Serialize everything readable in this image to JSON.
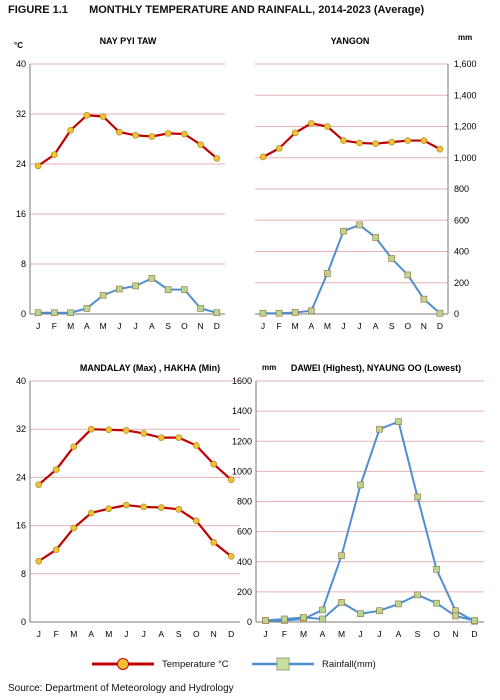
{
  "figure": {
    "number": "FIGURE 1.1",
    "title": "MONTHLY TEMPERATURE AND RAINFALL, 2014-2023 (Average)"
  },
  "colors": {
    "temperature_line": "#c00000",
    "temperature_marker": "#f2c232",
    "rainfall_line": "#4f8fd0",
    "rainfall_marker": "#b9d68f",
    "grid": "#e6b3b3"
  },
  "legend": {
    "temperature": "Temperature  °C",
    "rainfall": "Rainfall(mm)"
  },
  "source": "Source: Department  of Meteorology and Hydrology",
  "chart_data": [
    {
      "title": "NAY PYI TAW",
      "type": "line",
      "left_unit": "°C",
      "right_unit": "",
      "categories": [
        "J",
        "F",
        "M",
        "A",
        "M",
        "J",
        "J",
        "A",
        "S",
        "O",
        "N",
        "D"
      ],
      "left_ticks": [
        "0",
        "8",
        "16",
        "24",
        "32",
        "40"
      ],
      "right_ticks": [],
      "ylim": [
        0,
        40
      ],
      "grid": true,
      "series": [
        {
          "name": "Temperature °C",
          "kind": "temperature",
          "axis": "left",
          "values": [
            23.7,
            25.5,
            29.4,
            31.8,
            31.6,
            29.1,
            28.6,
            28.4,
            28.9,
            28.8,
            27.1,
            24.9
          ]
        },
        {
          "name": "Rainfall(mm)",
          "kind": "rainfall",
          "axis": "left",
          "values": [
            0.2,
            0.2,
            0.2,
            0.9,
            3.0,
            4.0,
            4.5,
            5.7,
            3.9,
            3.9,
            0.9,
            0.2
          ]
        }
      ]
    },
    {
      "title": "YANGON",
      "type": "line",
      "left_unit": "",
      "right_unit": "mm",
      "categories": [
        "J",
        "F",
        "M",
        "A",
        "M",
        "J",
        "J",
        "A",
        "S",
        "O",
        "N",
        "D"
      ],
      "left_ticks": [],
      "right_ticks": [
        "0",
        "200",
        "400",
        "600",
        "800",
        "1,000",
        "1,200",
        "1,400",
        "1,600"
      ],
      "ylim": [
        0,
        1600
      ],
      "grid": true,
      "series": [
        {
          "name": "Temperature °C",
          "kind": "temperature",
          "axis": "right",
          "values": [
            1005,
            1060,
            1160,
            1220,
            1200,
            1110,
            1095,
            1090,
            1100,
            1110,
            1110,
            1055
          ]
        },
        {
          "name": "Rainfall(mm)",
          "kind": "rainfall",
          "axis": "right",
          "values": [
            5,
            5,
            10,
            20,
            260,
            530,
            570,
            490,
            355,
            250,
            95,
            5
          ]
        }
      ]
    },
    {
      "title": "MANDALAY (Max) , HAKHA (Min)",
      "type": "line",
      "left_unit": "",
      "right_unit": "",
      "categories": [
        "J",
        "F",
        "M",
        "A",
        "M",
        "J",
        "J",
        "A",
        "S",
        "O",
        "N",
        "D"
      ],
      "left_ticks": [
        "0",
        "8",
        "16",
        "24",
        "32",
        "40"
      ],
      "right_ticks": [],
      "ylim": [
        0,
        40
      ],
      "grid": true,
      "series": [
        {
          "name": "Mandalay (Max)",
          "kind": "temperature",
          "axis": "left",
          "values": [
            22.8,
            25.3,
            29.1,
            32.0,
            31.9,
            31.8,
            31.3,
            30.6,
            30.6,
            29.3,
            26.2,
            23.6
          ]
        },
        {
          "name": "Hakha (Min)",
          "kind": "temperature",
          "axis": "left",
          "values": [
            10.1,
            12.0,
            15.6,
            18.1,
            18.8,
            19.4,
            19.1,
            19.0,
            18.7,
            16.8,
            13.2,
            10.9
          ]
        }
      ]
    },
    {
      "title": "DAWEI (Highest), NYAUNG OO (Lowest)",
      "type": "line",
      "left_unit": "mm",
      "right_unit": "",
      "categories": [
        "J",
        "F",
        "M",
        "A",
        "M",
        "J",
        "J",
        "A",
        "S",
        "O",
        "N",
        "D"
      ],
      "left_ticks": [
        "0",
        "200",
        "400",
        "600",
        "800",
        "1000",
        "1200",
        "1400",
        "1600"
      ],
      "right_ticks": [],
      "ylim": [
        0,
        1600
      ],
      "grid": true,
      "series": [
        {
          "name": "Dawei (Highest)",
          "kind": "rainfall",
          "axis": "left",
          "values": [
            10,
            10,
            20,
            80,
            440,
            910,
            1280,
            1330,
            830,
            350,
            75,
            5
          ]
        },
        {
          "name": "Nyaung Oo (Lowest)",
          "kind": "rainfall",
          "axis": "left",
          "values": [
            10,
            20,
            30,
            20,
            130,
            55,
            75,
            120,
            180,
            125,
            40,
            10
          ]
        }
      ]
    }
  ]
}
